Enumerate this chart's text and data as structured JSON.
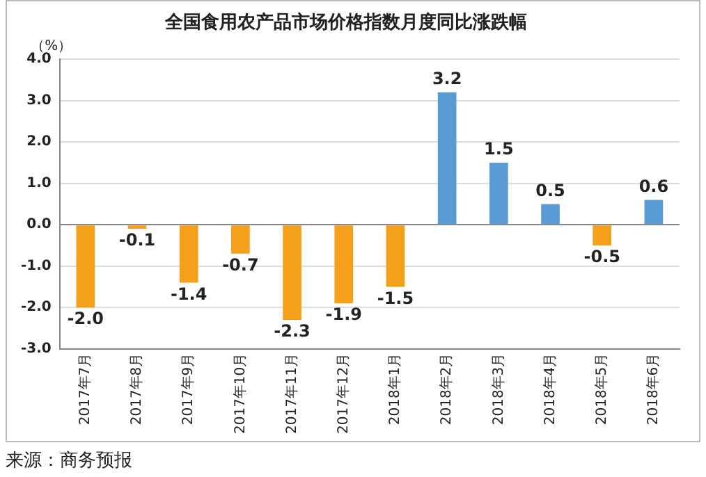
{
  "chart_data": {
    "type": "bar",
    "title": "全国食用农产品市场价格指数月度同比涨跌幅",
    "ylabel": "（%）",
    "categories": [
      "2017年7月",
      "2017年8月",
      "2017年9月",
      "2017年10月",
      "2017年11月",
      "2017年12月",
      "2018年1月",
      "2018年2月",
      "2018年3月",
      "2018年4月",
      "2018年5月",
      "2018年6月"
    ],
    "values": [
      -2.0,
      -0.1,
      -1.4,
      -0.7,
      -2.3,
      -1.9,
      -1.5,
      3.2,
      1.5,
      0.5,
      -0.5,
      0.6
    ],
    "colors": [
      "#f5a01a",
      "#f5a01a",
      "#f5a01a",
      "#f5a01a",
      "#f5a01a",
      "#f5a01a",
      "#f5a01a",
      "#5b9bd5",
      "#5b9bd5",
      "#5b9bd5",
      "#f5a01a",
      "#5b9bd5"
    ],
    "value_labels": [
      "-2.0",
      "-0.1",
      "-1.4",
      "-0.7",
      "-2.3",
      "-1.9",
      "-1.5",
      "3.2",
      "1.5",
      "0.5",
      "-0.5",
      "0.6"
    ],
    "ylim": [
      -3,
      4
    ],
    "yticks": [
      {
        "value": -3,
        "label": "-3.0"
      },
      {
        "value": -2,
        "label": "-2.0"
      },
      {
        "value": -1,
        "label": "-1.0"
      },
      {
        "value": 0,
        "label": "0.0"
      },
      {
        "value": 1,
        "label": "1.0"
      },
      {
        "value": 2,
        "label": "2.0"
      },
      {
        "value": 3,
        "label": "3.0"
      },
      {
        "value": 4,
        "label": "4.0"
      }
    ],
    "grid": "y",
    "legend": false,
    "annotations": [
      "来源：商务预报"
    ]
  }
}
